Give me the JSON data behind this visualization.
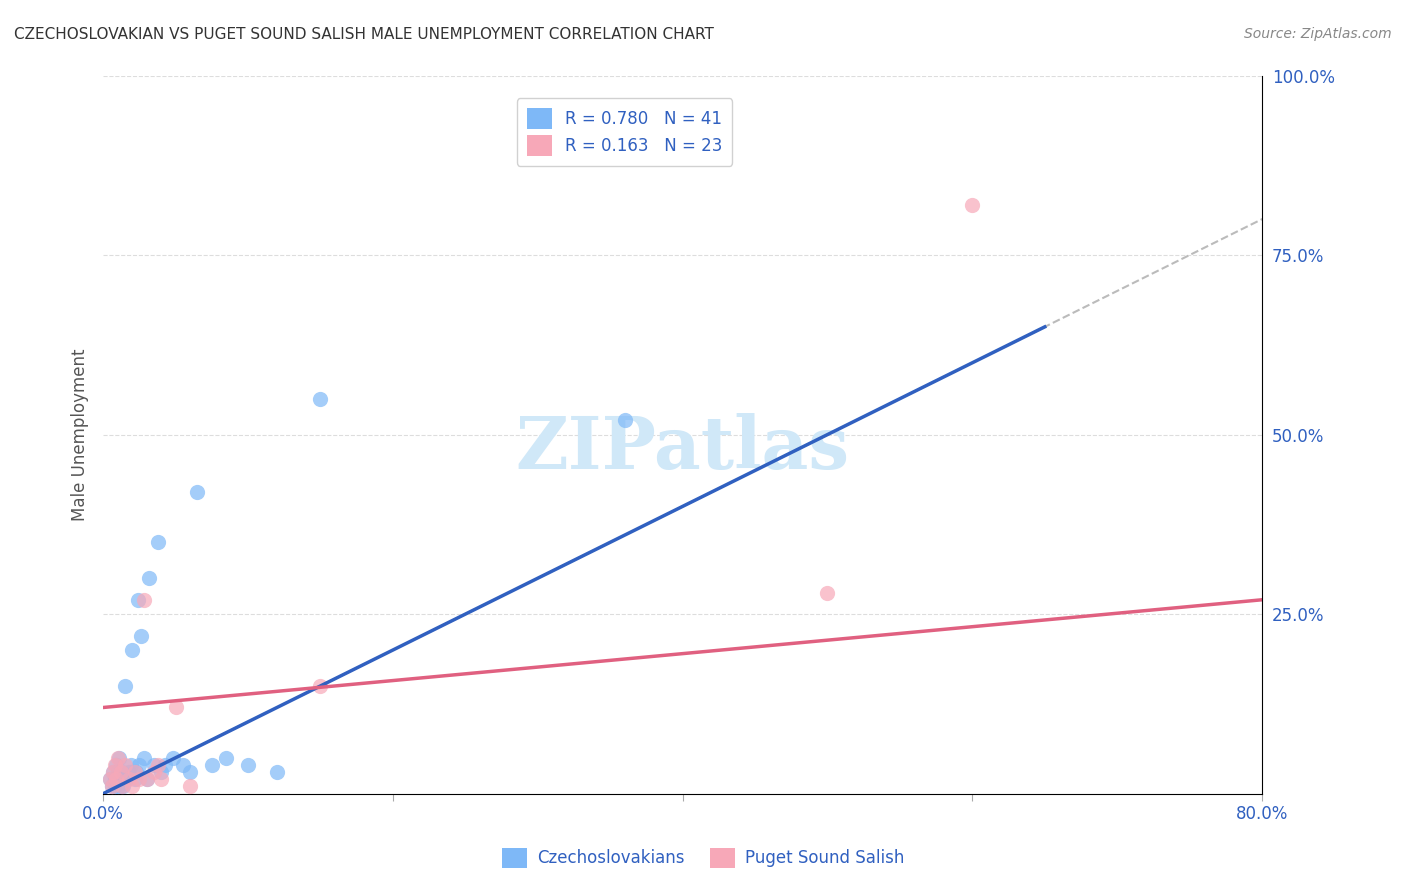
{
  "title": "CZECHOSLOVAKIAN VS PUGET SOUND SALISH MALE UNEMPLOYMENT CORRELATION CHART",
  "source": "Source: ZipAtlas.com",
  "xlabel": "",
  "ylabel": "Male Unemployment",
  "xlim": [
    0.0,
    0.8
  ],
  "ylim": [
    0.0,
    1.0
  ],
  "xticks": [
    0.0,
    0.2,
    0.4,
    0.6,
    0.8
  ],
  "xticklabels": [
    "0.0%",
    "",
    "",
    "",
    "80.0%"
  ],
  "yticks_right": [
    0.0,
    0.25,
    0.5,
    0.75,
    1.0
  ],
  "yticklabels_right": [
    "",
    "25.0%",
    "50.0%",
    "75.0%",
    "100.0%"
  ],
  "blue_label": "Czechoslovakians",
  "pink_label": "Puget Sound Salish",
  "blue_R": "0.780",
  "blue_N": "41",
  "pink_R": "0.163",
  "pink_N": "23",
  "blue_color": "#7eb8f7",
  "pink_color": "#f7a8b8",
  "blue_line_color": "#3060c0",
  "pink_line_color": "#e06080",
  "ref_line_color": "#bbbbbb",
  "legend_text_color": "#3060c0",
  "title_color": "#333333",
  "watermark_color": "#d0e8f8",
  "watermark_text": "ZIPatlas",
  "blue_scatter_x": [
    0.005,
    0.006,
    0.007,
    0.008,
    0.008,
    0.009,
    0.01,
    0.01,
    0.011,
    0.011,
    0.012,
    0.012,
    0.013,
    0.014,
    0.015,
    0.016,
    0.018,
    0.019,
    0.02,
    0.022,
    0.023,
    0.024,
    0.025,
    0.026,
    0.028,
    0.03,
    0.032,
    0.035,
    0.038,
    0.04,
    0.043,
    0.048,
    0.055,
    0.06,
    0.065,
    0.075,
    0.085,
    0.1,
    0.12,
    0.15,
    0.36
  ],
  "blue_scatter_y": [
    0.02,
    0.01,
    0.03,
    0.01,
    0.02,
    0.04,
    0.01,
    0.03,
    0.02,
    0.05,
    0.01,
    0.02,
    0.03,
    0.01,
    0.15,
    0.02,
    0.03,
    0.04,
    0.2,
    0.02,
    0.03,
    0.27,
    0.04,
    0.22,
    0.05,
    0.02,
    0.3,
    0.04,
    0.35,
    0.03,
    0.04,
    0.05,
    0.04,
    0.03,
    0.42,
    0.04,
    0.05,
    0.04,
    0.03,
    0.55,
    0.52
  ],
  "pink_scatter_x": [
    0.005,
    0.006,
    0.007,
    0.008,
    0.009,
    0.01,
    0.012,
    0.013,
    0.015,
    0.018,
    0.02,
    0.022,
    0.025,
    0.028,
    0.03,
    0.035,
    0.038,
    0.04,
    0.05,
    0.06,
    0.15,
    0.5,
    0.6
  ],
  "pink_scatter_y": [
    0.02,
    0.01,
    0.03,
    0.04,
    0.02,
    0.05,
    0.03,
    0.01,
    0.04,
    0.02,
    0.01,
    0.03,
    0.02,
    0.27,
    0.02,
    0.03,
    0.04,
    0.02,
    0.12,
    0.01,
    0.15,
    0.28,
    0.82
  ],
  "blue_line_x": [
    0.0,
    0.65
  ],
  "blue_line_y": [
    0.0,
    0.65
  ],
  "pink_line_x": [
    0.0,
    0.8
  ],
  "pink_line_y": [
    0.12,
    0.27
  ],
  "ref_line_x": [
    0.0,
    1.0
  ],
  "ref_line_y": [
    0.0,
    1.0
  ]
}
